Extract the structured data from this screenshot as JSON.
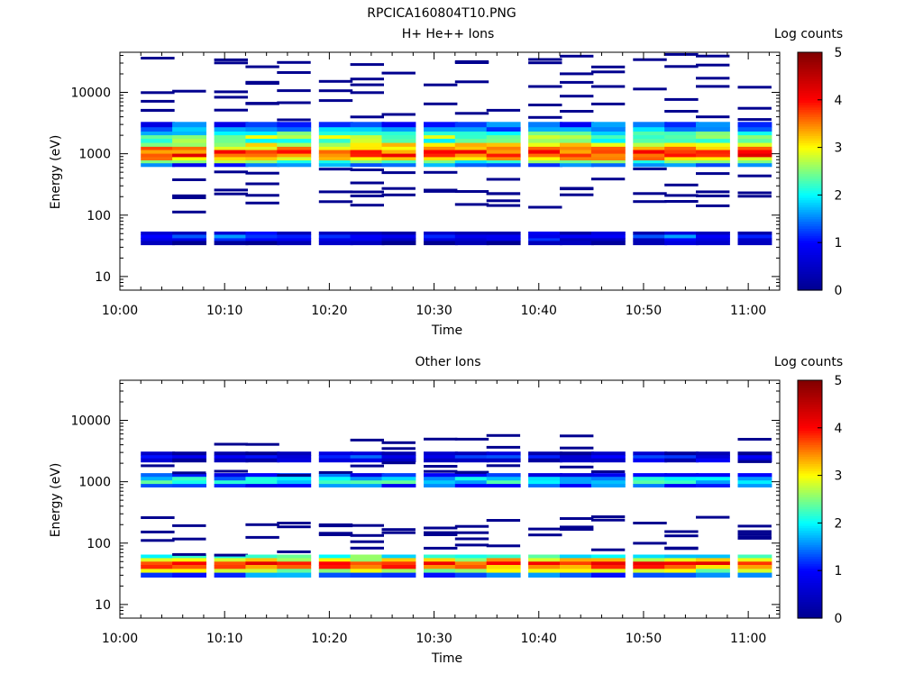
{
  "page_title": "RPCICA160804T10.PNG",
  "colormap": [
    "#00008f",
    "#0000ff",
    "#00ffff",
    "#ffff00",
    "#ff0000",
    "#800000"
  ],
  "chart_data": [
    {
      "type": "heatmap",
      "title": "H+ He++ Ions",
      "xlabel": "Time",
      "ylabel": "Energy (eV)",
      "y_scale": "log",
      "ylim": [
        6,
        45000
      ],
      "xlim": [
        "10:00",
        "11:03"
      ],
      "x_ticks": [
        "10:00",
        "10:10",
        "10:20",
        "10:30",
        "10:40",
        "10:50",
        "11:00"
      ],
      "y_ticks": [
        10,
        100,
        1000,
        10000
      ],
      "y_tick_labels": [
        "10",
        "100",
        "1000",
        "10000"
      ],
      "colorbar": {
        "label": "Log counts",
        "range": [
          0,
          5
        ],
        "ticks": [
          "0",
          "1",
          "2",
          "3",
          "4",
          "5"
        ]
      },
      "time_bins": [
        "10:02",
        "10:05",
        "10:09",
        "10:12",
        "10:15",
        "10:19",
        "10:22",
        "10:25",
        "10:29",
        "10:32",
        "10:35",
        "10:39",
        "10:42",
        "10:45",
        "10:49",
        "10:52",
        "10:55",
        "10:59"
      ],
      "band_profile": [
        {
          "e_low": 2700,
          "e_high": 3300,
          "value": 1.2
        },
        {
          "e_low": 2300,
          "e_high": 2700,
          "value": 1.6
        },
        {
          "e_low": 2000,
          "e_high": 2300,
          "value": 2.1
        },
        {
          "e_low": 1750,
          "e_high": 2000,
          "value": 2.6
        },
        {
          "e_low": 1500,
          "e_high": 1750,
          "value": 2.4
        },
        {
          "e_low": 1300,
          "e_high": 1500,
          "value": 2.9
        },
        {
          "e_low": 1150,
          "e_high": 1300,
          "value": 3.3
        },
        {
          "e_low": 1000,
          "e_high": 1150,
          "value": 3.7
        },
        {
          "e_low": 880,
          "e_high": 1000,
          "value": 3.8
        },
        {
          "e_low": 780,
          "e_high": 880,
          "value": 3.2
        },
        {
          "e_low": 700,
          "e_high": 780,
          "value": 2.3
        },
        {
          "e_low": 620,
          "e_high": 700,
          "value": 1.3
        },
        {
          "e_low": 48,
          "e_high": 54,
          "value": 0.6
        },
        {
          "e_low": 42,
          "e_high": 48,
          "value": 1.2
        },
        {
          "e_low": 38,
          "e_high": 42,
          "value": 0.8
        },
        {
          "e_low": 33,
          "e_high": 38,
          "value": 0.3
        }
      ],
      "sparse_lines_ev": [
        310,
        480,
        230,
        5500,
        8000,
        12000,
        18000,
        25000,
        38000,
        4200,
        180,
        140,
        260
      ]
    },
    {
      "type": "heatmap",
      "title": "Other Ions",
      "xlabel": "Time",
      "ylabel": "Energy (eV)",
      "y_scale": "log",
      "ylim": [
        6,
        45000
      ],
      "xlim": [
        "10:00",
        "11:03"
      ],
      "x_ticks": [
        "10:00",
        "10:10",
        "10:20",
        "10:30",
        "10:40",
        "10:50",
        "11:00"
      ],
      "y_ticks": [
        10,
        100,
        1000,
        10000
      ],
      "y_tick_labels": [
        "10",
        "100",
        "1000",
        "10000"
      ],
      "colorbar": {
        "label": "Log counts",
        "range": [
          0,
          5
        ],
        "ticks": [
          "0",
          "1",
          "2",
          "3",
          "4",
          "5"
        ]
      },
      "time_bins": [
        "10:02",
        "10:05",
        "10:09",
        "10:12",
        "10:15",
        "10:19",
        "10:22",
        "10:25",
        "10:29",
        "10:32",
        "10:35",
        "10:39",
        "10:42",
        "10:45",
        "10:49",
        "10:52",
        "10:55",
        "10:59"
      ],
      "band_profile": [
        {
          "e_low": 2700,
          "e_high": 3100,
          "value": 0.3
        },
        {
          "e_low": 2400,
          "e_high": 2700,
          "value": 1.0
        },
        {
          "e_low": 2100,
          "e_high": 2400,
          "value": 0.5
        },
        {
          "e_low": 1200,
          "e_high": 1380,
          "value": 1.1
        },
        {
          "e_low": 1050,
          "e_high": 1200,
          "value": 1.8
        },
        {
          "e_low": 920,
          "e_high": 1050,
          "value": 2.0
        },
        {
          "e_low": 820,
          "e_high": 920,
          "value": 1.2
        },
        {
          "e_low": 57,
          "e_high": 65,
          "value": 2.2
        },
        {
          "e_low": 50,
          "e_high": 57,
          "value": 3.0
        },
        {
          "e_low": 44,
          "e_high": 50,
          "value": 3.8
        },
        {
          "e_low": 38,
          "e_high": 44,
          "value": 3.5
        },
        {
          "e_low": 33,
          "e_high": 38,
          "value": 2.6
        },
        {
          "e_low": 28,
          "e_high": 33,
          "value": 1.3
        }
      ],
      "sparse_lines_ev": [
        190,
        170,
        140,
        120,
        85,
        75,
        5000,
        4200,
        1700,
        1500,
        230,
        110
      ]
    }
  ]
}
